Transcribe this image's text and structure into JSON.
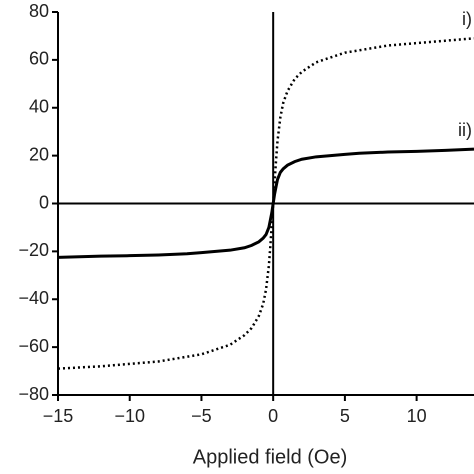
{
  "chart_data": {
    "type": "line",
    "x_label": "Applied field (Oe)",
    "x": [
      -15,
      -12,
      -10,
      -8,
      -6,
      -5,
      -4,
      -3,
      -2,
      -1.5,
      -1,
      -0.7,
      -0.5,
      -0.3,
      -0.2,
      -0.1,
      0,
      0.1,
      0.2,
      0.3,
      0.5,
      0.7,
      1,
      1.5,
      2,
      3,
      4,
      5,
      6,
      8,
      10,
      12,
      14
    ],
    "series": [
      {
        "name": "i)",
        "color": "#000000",
        "dash": "dotted",
        "values": [
          -69,
          -68,
          -67,
          -66,
          -64,
          -63,
          -61,
          -59,
          -55,
          -52,
          -47,
          -42,
          -36,
          -26,
          -18,
          -9,
          0,
          9,
          18,
          26,
          36,
          42,
          47,
          52,
          55,
          59,
          61,
          63,
          64,
          66,
          67,
          68,
          69
        ]
      },
      {
        "name": "ii)",
        "color": "#000000",
        "dash": "solid",
        "values": [
          -22.5,
          -22,
          -21.8,
          -21.5,
          -21,
          -20.5,
          -20,
          -19.5,
          -18.5,
          -17.5,
          -16,
          -14.5,
          -13,
          -10,
          -7,
          -4,
          0,
          4,
          7,
          10,
          13,
          14.5,
          16,
          17.5,
          18.5,
          19.5,
          20,
          20.5,
          21,
          21.5,
          21.8,
          22.2,
          22.7
        ]
      }
    ],
    "xlim": [
      -15,
      14
    ],
    "ylim": [
      -80,
      80
    ],
    "xticks": [
      {
        "value": -15,
        "label": "−15"
      },
      {
        "value": -10,
        "label": "−10"
      },
      {
        "value": -5,
        "label": "−5"
      },
      0,
      5,
      10
    ],
    "yticks": [
      {
        "value": -80,
        "label": "−80"
      },
      {
        "value": -60,
        "label": "−60"
      },
      {
        "value": -40,
        "label": "−40"
      },
      {
        "value": -20,
        "label": "−20"
      },
      0,
      20,
      40,
      60,
      80
    ],
    "grid": false
  }
}
